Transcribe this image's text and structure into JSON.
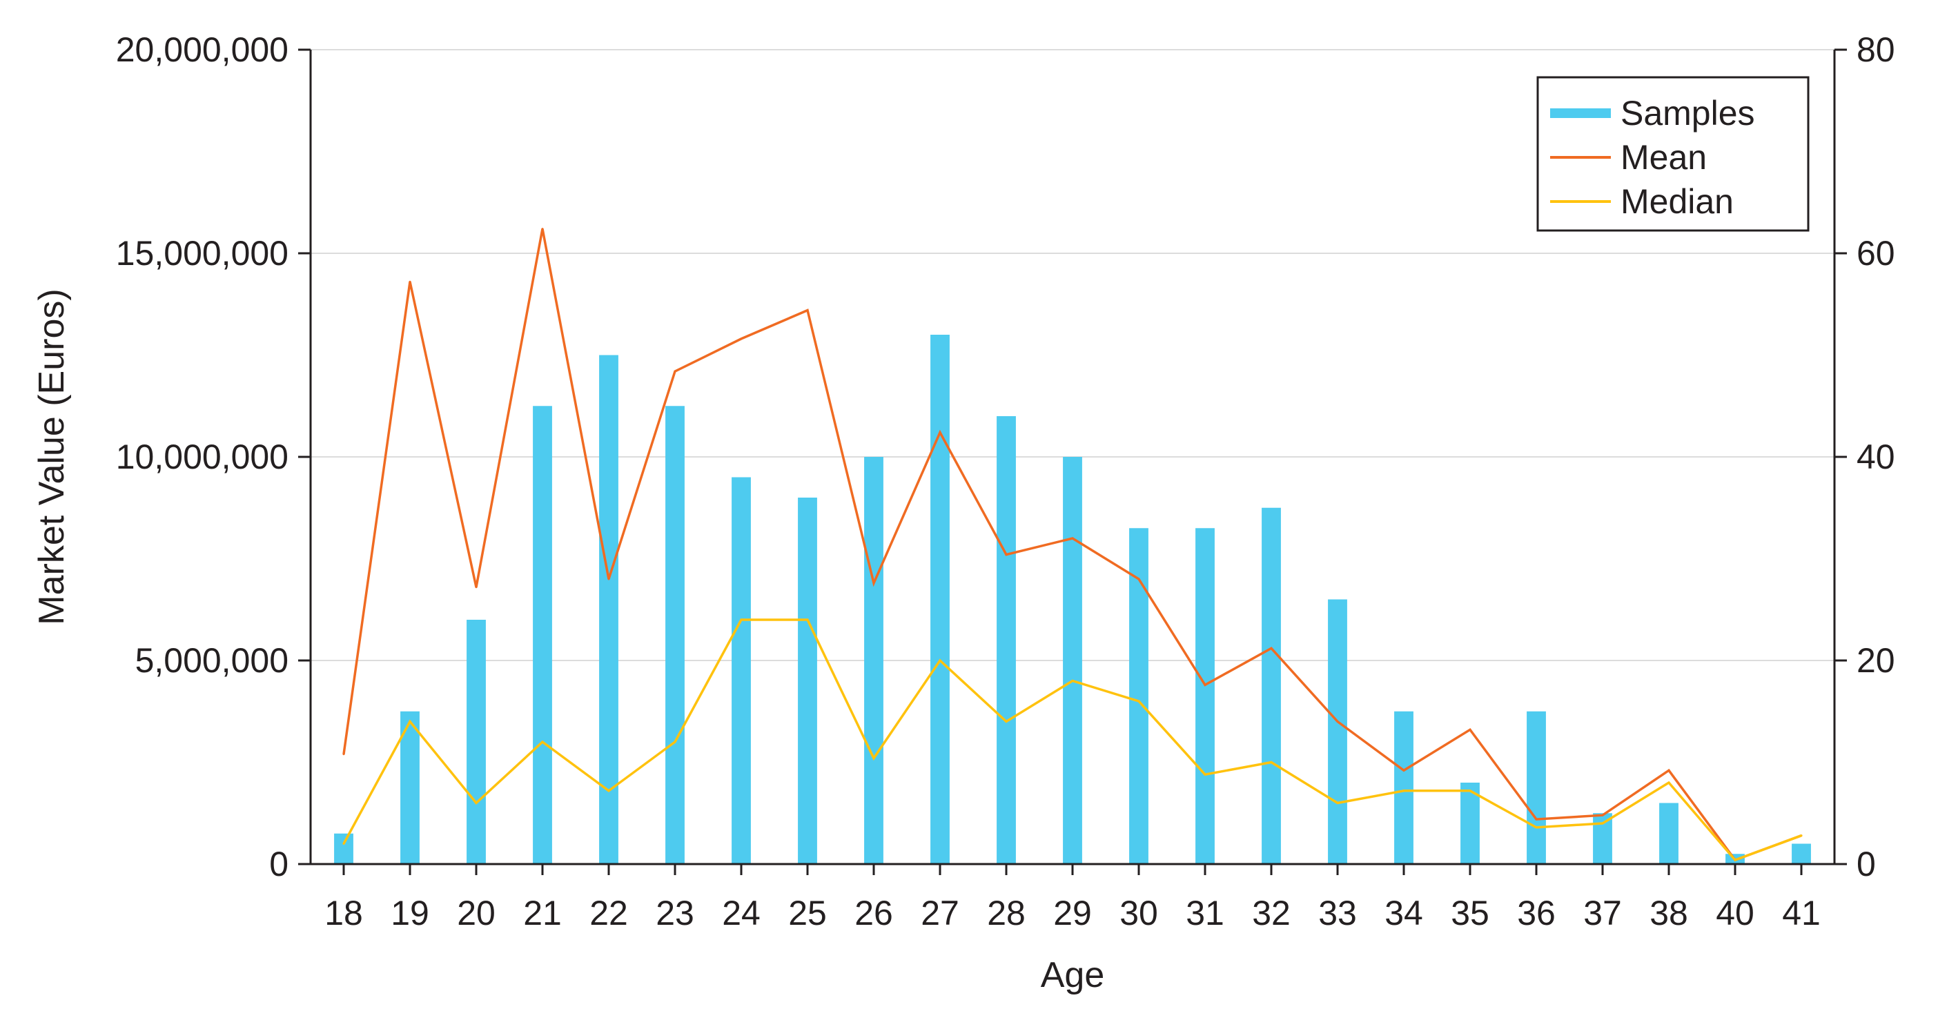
{
  "chart_data": {
    "type": "bar",
    "xlabel": "Age",
    "ylabel": "Market Value (Euros)",
    "y2label": "",
    "categories": [
      "18",
      "19",
      "20",
      "21",
      "22",
      "23",
      "24",
      "25",
      "26",
      "27",
      "28",
      "29",
      "30",
      "31",
      "32",
      "33",
      "34",
      "35",
      "36",
      "37",
      "38",
      "40",
      "41"
    ],
    "ylim": [
      0,
      20000000
    ],
    "y2lim": [
      0,
      80
    ],
    "yticks": [
      0,
      5000000,
      10000000,
      15000000,
      20000000
    ],
    "yticks_labels": [
      "0",
      "5,000,000",
      "10,000,000",
      "15,000,000",
      "20,000,000"
    ],
    "y2ticks": [
      0,
      20,
      40,
      60,
      80
    ],
    "y2ticks_labels": [
      "0",
      "20",
      "40",
      "60",
      "80"
    ],
    "grid": true,
    "legend_position": "top-right",
    "series": [
      {
        "name": "Samples",
        "kind": "bar",
        "axis": "right",
        "color": "#4ecbef",
        "values": [
          3,
          15,
          24,
          45,
          50,
          45,
          38,
          36,
          40,
          52,
          44,
          40,
          33,
          33,
          35,
          26,
          15,
          8,
          15,
          5,
          6,
          1,
          2
        ]
      },
      {
        "name": "Mean",
        "kind": "line",
        "axis": "left",
        "color": "#f06b22",
        "values": [
          2700000,
          14300000,
          6800000,
          15600000,
          7000000,
          12100000,
          12900000,
          13600000,
          6900000,
          10600000,
          7600000,
          8000000,
          7000000,
          4400000,
          5300000,
          3500000,
          2300000,
          3300000,
          1100000,
          1200000,
          2300000,
          100000,
          700000
        ]
      },
      {
        "name": "Median",
        "kind": "line",
        "axis": "left",
        "color": "#ffc20e",
        "values": [
          500000,
          3500000,
          1500000,
          3000000,
          1800000,
          3000000,
          6000000,
          6000000,
          2600000,
          5000000,
          3500000,
          4500000,
          4000000,
          2200000,
          2500000,
          1500000,
          1800000,
          1800000,
          900000,
          1000000,
          2000000,
          100000,
          700000
        ]
      }
    ]
  }
}
